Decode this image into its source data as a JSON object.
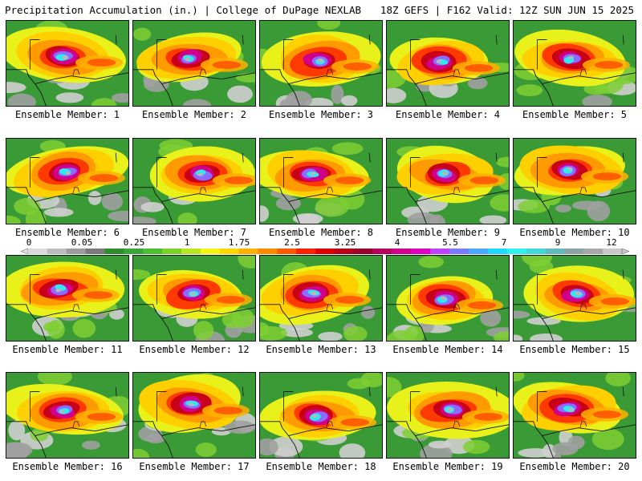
{
  "header": {
    "title": "Precipitation Accumulation (in.) | College of DuPage NEXLAB",
    "run_info": "18Z GEFS | F162 Valid: 12Z SUN JUN 15 2025"
  },
  "colorbar": {
    "tick_labels": [
      "0",
      "0.05",
      "0.25",
      "1",
      "1.75",
      "2.5",
      "3.25",
      "4",
      "5.5",
      "7",
      "9",
      "12"
    ],
    "colors": [
      "#d9d9d9",
      "#bdbdbd",
      "#9c9c9c",
      "#7a7a7a",
      "#2f8f2f",
      "#3aa53a",
      "#4cbf30",
      "#7ad127",
      "#b7e81f",
      "#f3f513",
      "#ffd800",
      "#ffb000",
      "#ff8a00",
      "#ff5a00",
      "#ff2000",
      "#e00000",
      "#b80018",
      "#98002a",
      "#b4005a",
      "#d0008a",
      "#e000c0",
      "#c040ff",
      "#7a7aff",
      "#4aa8ff",
      "#1ed8ff",
      "#30f0f0",
      "#40d8d8",
      "#60bcbc",
      "#8ca4a4",
      "#a8a8a8",
      "#c8c8c8"
    ]
  },
  "panels": [
    {
      "label": "Ensemble Member: 1"
    },
    {
      "label": "Ensemble Member: 2"
    },
    {
      "label": "Ensemble Member: 3"
    },
    {
      "label": "Ensemble Member: 4"
    },
    {
      "label": "Ensemble Member: 5"
    },
    {
      "label": "Ensemble Member: 6"
    },
    {
      "label": "Ensemble Member: 7"
    },
    {
      "label": "Ensemble Member: 8"
    },
    {
      "label": "Ensemble Member: 9"
    },
    {
      "label": "Ensemble Member: 10"
    },
    {
      "label": "Ensemble Member: 11"
    },
    {
      "label": "Ensemble Member: 12"
    },
    {
      "label": "Ensemble Member: 13"
    },
    {
      "label": "Ensemble Member: 14"
    },
    {
      "label": "Ensemble Member: 15"
    },
    {
      "label": "Ensemble Member: 16"
    },
    {
      "label": "Ensemble Member: 17"
    },
    {
      "label": "Ensemble Member: 18"
    },
    {
      "label": "Ensemble Member: 19"
    },
    {
      "label": "Ensemble Member: 20"
    }
  ]
}
